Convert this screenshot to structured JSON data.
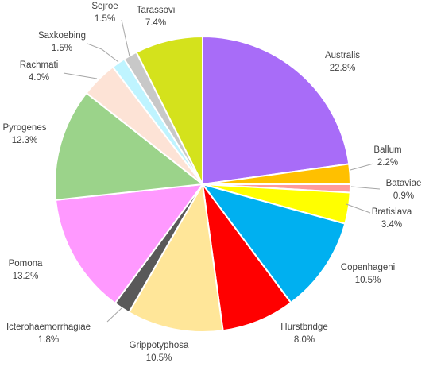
{
  "chart_data": {
    "type": "pie",
    "start_angle_deg": 0,
    "direction": "clockwise",
    "slices": [
      {
        "label": "Australis",
        "value": 22.8,
        "value_label": "22.8%",
        "color": "#a86cf8"
      },
      {
        "label": "Ballum",
        "value": 2.2,
        "value_label": "2.2%",
        "color": "#ffc000"
      },
      {
        "label": "Bataviae",
        "value": 0.9,
        "value_label": "0.9%",
        "color": "#ff9b9b"
      },
      {
        "label": "Bratislava",
        "value": 3.4,
        "value_label": "3.4%",
        "color": "#ffff00"
      },
      {
        "label": "Copenhageni",
        "value": 10.5,
        "value_label": "10.5%",
        "color": "#00b0f0"
      },
      {
        "label": "Hurstbridge",
        "value": 8.0,
        "value_label": "8.0%",
        "color": "#ff0000"
      },
      {
        "label": "Grippotyphosa",
        "value": 10.5,
        "value_label": "10.5%",
        "color": "#ffe699"
      },
      {
        "label": "Icterohaemorrhagiae",
        "value": 1.8,
        "value_label": "1.8%",
        "color": "#595959"
      },
      {
        "label": "Pomona",
        "value": 13.2,
        "value_label": "13.2%",
        "color": "#ff99ff"
      },
      {
        "label": "Pyrogenes",
        "value": 12.3,
        "value_label": "12.3%",
        "color": "#9bd38a"
      },
      {
        "label": "Rachmati",
        "value": 4.0,
        "value_label": "4.0%",
        "color": "#fde3d6"
      },
      {
        "label": "Saxkoebing",
        "value": 1.5,
        "value_label": "1.5%",
        "color": "#bff4ff"
      },
      {
        "label": "Sejroe",
        "value": 1.5,
        "value_label": "1.5%",
        "color": "#c8c8c8"
      },
      {
        "label": "Tarassovi",
        "value": 7.4,
        "value_label": "7.4%",
        "color": "#d4e21c"
      }
    ]
  }
}
